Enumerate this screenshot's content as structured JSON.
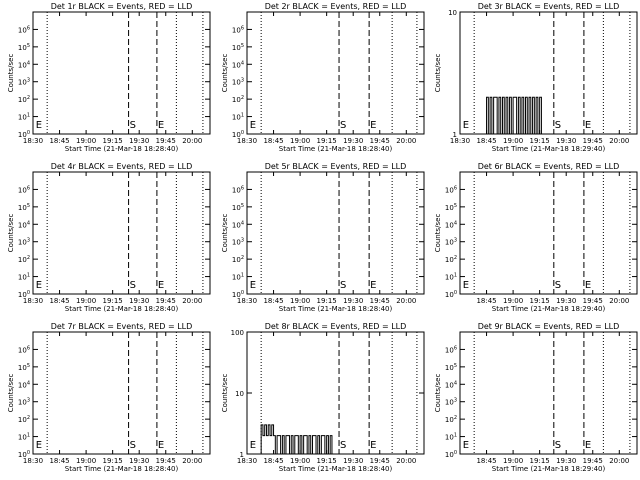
{
  "figure": {
    "background": "#ffffff",
    "event_color": "#000000",
    "lld_color": "#ff0000"
  },
  "chart_data": [
    {
      "type": "line",
      "title": "Det 1r BLACK = Events, RED = LLD",
      "xlabel": "Start Time (21-Mar-18 18:28:40)",
      "ylabel": "Counts/sec",
      "x_tick_labels": [
        "18:30",
        "18:45",
        "19:00",
        "19:15",
        "19:30",
        "19:45",
        "20:00"
      ],
      "x_tick_minutes": [
        0,
        15,
        30,
        45,
        60,
        75,
        90
      ],
      "xlim_minutes": [
        0,
        100
      ],
      "y_scale": "log",
      "ylim": [
        1,
        10000000
      ],
      "y_tick_labels": [
        {
          "b": "10",
          "e": "0"
        },
        {
          "b": "10",
          "e": "1"
        },
        {
          "b": "10",
          "e": "2"
        },
        {
          "b": "10",
          "e": "3"
        },
        {
          "b": "10",
          "e": "4"
        },
        {
          "b": "10",
          "e": "5"
        },
        {
          "b": "10",
          "e": "6"
        }
      ],
      "y_tick_values": [
        1,
        10,
        100,
        1000,
        10000,
        100000,
        1000000
      ],
      "dotted_lines_minutes": [
        8,
        81,
        96
      ],
      "dashed_lines_minutes": [
        54,
        70
      ],
      "markers": [
        {
          "label": "E",
          "minute": 1
        },
        {
          "label": "S",
          "minute": 54
        },
        {
          "label": "E",
          "minute": 70
        }
      ],
      "series": []
    },
    {
      "type": "line",
      "title": "Det 2r BLACK = Events, RED = LLD",
      "xlabel": "Start Time (21-Mar-18 18:28:40)",
      "ylabel": "Counts/sec",
      "x_tick_labels": [
        "18:30",
        "18:45",
        "19:00",
        "19:15",
        "19:30",
        "19:45",
        "20:00"
      ],
      "x_tick_minutes": [
        0,
        15,
        30,
        45,
        60,
        75,
        90
      ],
      "xlim_minutes": [
        0,
        100
      ],
      "y_scale": "log",
      "ylim": [
        1,
        10000000
      ],
      "y_tick_labels": [
        {
          "b": "10",
          "e": "0"
        },
        {
          "b": "10",
          "e": "1"
        },
        {
          "b": "10",
          "e": "2"
        },
        {
          "b": "10",
          "e": "3"
        },
        {
          "b": "10",
          "e": "4"
        },
        {
          "b": "10",
          "e": "5"
        },
        {
          "b": "10",
          "e": "6"
        }
      ],
      "y_tick_values": [
        1,
        10,
        100,
        1000,
        10000,
        100000,
        1000000
      ],
      "dotted_lines_minutes": [
        8,
        82,
        96
      ],
      "dashed_lines_minutes": [
        52,
        69
      ],
      "markers": [
        {
          "label": "E",
          "minute": 1
        },
        {
          "label": "S",
          "minute": 52
        },
        {
          "label": "E",
          "minute": 69
        }
      ],
      "series": []
    },
    {
      "type": "line",
      "title": "Det 3r BLACK = Events, RED = LLD",
      "xlabel": "Start Time (21-Mar-18 18:29:40)",
      "ylabel": "Counts/sec",
      "x_tick_labels": [
        "18:30",
        "18:45",
        "19:00",
        "19:15",
        "19:30",
        "19:45",
        "20:00"
      ],
      "x_tick_minutes": [
        0,
        15,
        30,
        45,
        60,
        75,
        90
      ],
      "xlim_minutes": [
        0,
        100
      ],
      "y_scale": "log",
      "ylim": [
        1,
        10
      ],
      "y_tick_labels": [
        {
          "b": "1",
          "e": ""
        },
        {
          "b": "10",
          "e": ""
        }
      ],
      "y_tick_values": [
        1,
        10
      ],
      "dotted_lines_minutes": [
        8,
        81,
        96
      ],
      "dashed_lines_minutes": [
        53,
        70
      ],
      "markers": [
        {
          "label": "E",
          "minute": 1
        },
        {
          "label": "S",
          "minute": 53
        },
        {
          "label": "E",
          "minute": 70
        }
      ],
      "series": [
        {
          "x": [
            14,
            15,
            16,
            17,
            18,
            19,
            20,
            21,
            22,
            23,
            24,
            25,
            26,
            27,
            28,
            29,
            30,
            31,
            32,
            33,
            34,
            35,
            36,
            37,
            38,
            39,
            40,
            41,
            42,
            43,
            44,
            45,
            46
          ],
          "y": [
            1,
            2,
            1,
            2,
            1,
            2,
            2,
            1,
            2,
            1,
            2,
            1,
            2,
            1,
            2,
            1,
            2,
            2,
            1,
            2,
            1,
            2,
            1,
            2,
            1,
            2,
            1,
            2,
            1,
            2,
            1,
            2,
            1
          ]
        }
      ]
    },
    {
      "type": "line",
      "title": "Det 4r BLACK = Events, RED = LLD",
      "xlabel": "Start Time (21-Mar-18 18:28:40)",
      "ylabel": "Counts/sec",
      "x_tick_labels": [
        "18:30",
        "18:45",
        "19:00",
        "19:15",
        "19:30",
        "19:45",
        "20:00"
      ],
      "x_tick_minutes": [
        0,
        15,
        30,
        45,
        60,
        75,
        90
      ],
      "xlim_minutes": [
        0,
        100
      ],
      "y_scale": "log",
      "ylim": [
        1,
        10000000
      ],
      "y_tick_labels": [
        {
          "b": "10",
          "e": "0"
        },
        {
          "b": "10",
          "e": "1"
        },
        {
          "b": "10",
          "e": "2"
        },
        {
          "b": "10",
          "e": "3"
        },
        {
          "b": "10",
          "e": "4"
        },
        {
          "b": "10",
          "e": "5"
        },
        {
          "b": "10",
          "e": "6"
        }
      ],
      "y_tick_values": [
        1,
        10,
        100,
        1000,
        10000,
        100000,
        1000000
      ],
      "dotted_lines_minutes": [
        8,
        81,
        96
      ],
      "dashed_lines_minutes": [
        54,
        70
      ],
      "markers": [
        {
          "label": "E",
          "minute": 1
        },
        {
          "label": "S",
          "minute": 54
        },
        {
          "label": "E",
          "minute": 70
        }
      ],
      "series": []
    },
    {
      "type": "line",
      "title": "Det 5r BLACK = Events, RED = LLD",
      "xlabel": "Start Time (21-Mar-18 18:28:40)",
      "ylabel": "Counts/sec",
      "x_tick_labels": [
        "18:30",
        "18:45",
        "19:00",
        "19:15",
        "19:30",
        "19:45",
        "20:00"
      ],
      "x_tick_minutes": [
        0,
        15,
        30,
        45,
        60,
        75,
        90
      ],
      "xlim_minutes": [
        0,
        100
      ],
      "y_scale": "log",
      "ylim": [
        1,
        10000000
      ],
      "y_tick_labels": [
        {
          "b": "10",
          "e": "0"
        },
        {
          "b": "10",
          "e": "1"
        },
        {
          "b": "10",
          "e": "2"
        },
        {
          "b": "10",
          "e": "3"
        },
        {
          "b": "10",
          "e": "4"
        },
        {
          "b": "10",
          "e": "5"
        },
        {
          "b": "10",
          "e": "6"
        }
      ],
      "y_tick_values": [
        1,
        10,
        100,
        1000,
        10000,
        100000,
        1000000
      ],
      "dotted_lines_minutes": [
        8,
        82,
        96
      ],
      "dashed_lines_minutes": [
        52,
        69
      ],
      "markers": [
        {
          "label": "E",
          "minute": 1
        },
        {
          "label": "S",
          "minute": 52
        },
        {
          "label": "E",
          "minute": 69
        }
      ],
      "series": []
    },
    {
      "type": "line",
      "title": "Det 6r BLACK = Events, RED = LLD",
      "xlabel": "Start Time (21-Mar-18 18:29:40)",
      "ylabel": "Counts/sec",
      "x_tick_labels": [
        "18:45",
        "19:00",
        "19:15",
        "19:30",
        "19:45",
        "20:00"
      ],
      "x_tick_minutes": [
        15,
        30,
        45,
        60,
        75,
        90
      ],
      "xlim_minutes": [
        0,
        100
      ],
      "y_scale": "log",
      "ylim": [
        1,
        10000000
      ],
      "y_tick_labels": [
        {
          "b": "10",
          "e": "0"
        },
        {
          "b": "10",
          "e": "1"
        },
        {
          "b": "10",
          "e": "2"
        },
        {
          "b": "10",
          "e": "3"
        },
        {
          "b": "10",
          "e": "4"
        },
        {
          "b": "10",
          "e": "5"
        },
        {
          "b": "10",
          "e": "6"
        }
      ],
      "y_tick_values": [
        1,
        10,
        100,
        1000,
        10000,
        100000,
        1000000
      ],
      "dotted_lines_minutes": [
        8,
        81,
        96
      ],
      "dashed_lines_minutes": [
        53,
        70
      ],
      "markers": [
        {
          "label": "E",
          "minute": 1
        },
        {
          "label": "S",
          "minute": 53
        },
        {
          "label": "E",
          "minute": 70
        }
      ],
      "series": []
    },
    {
      "type": "line",
      "title": "Det 7r BLACK = Events, RED = LLD",
      "xlabel": "Start Time (21-Mar-18 18:28:40)",
      "ylabel": "Counts/sec",
      "x_tick_labels": [
        "18:30",
        "18:45",
        "19:00",
        "19:15",
        "19:30",
        "19:45",
        "20:00"
      ],
      "x_tick_minutes": [
        0,
        15,
        30,
        45,
        60,
        75,
        90
      ],
      "xlim_minutes": [
        0,
        100
      ],
      "y_scale": "log",
      "ylim": [
        1,
        10000000
      ],
      "y_tick_labels": [
        {
          "b": "10",
          "e": "0"
        },
        {
          "b": "10",
          "e": "1"
        },
        {
          "b": "10",
          "e": "2"
        },
        {
          "b": "10",
          "e": "3"
        },
        {
          "b": "10",
          "e": "4"
        },
        {
          "b": "10",
          "e": "5"
        },
        {
          "b": "10",
          "e": "6"
        }
      ],
      "y_tick_values": [
        1,
        10,
        100,
        1000,
        10000,
        100000,
        1000000
      ],
      "dotted_lines_minutes": [
        8,
        81,
        96
      ],
      "dashed_lines_minutes": [
        54,
        70
      ],
      "markers": [
        {
          "label": "E",
          "minute": 1
        },
        {
          "label": "S",
          "minute": 54
        },
        {
          "label": "E",
          "minute": 70
        }
      ],
      "series": []
    },
    {
      "type": "line",
      "title": "Det 8r BLACK = Events, RED = LLD",
      "xlabel": "Start Time (21-Mar-18 18:28:40)",
      "ylabel": "Counts/sec",
      "x_tick_labels": [
        "18:30",
        "18:45",
        "19:00",
        "19:15",
        "19:30",
        "19:45",
        "20:00"
      ],
      "x_tick_minutes": [
        0,
        15,
        30,
        45,
        60,
        75,
        90
      ],
      "xlim_minutes": [
        0,
        100
      ],
      "y_scale": "log",
      "ylim": [
        1,
        100
      ],
      "y_tick_labels": [
        {
          "b": "1",
          "e": ""
        },
        {
          "b": "10",
          "e": ""
        },
        {
          "b": "100",
          "e": ""
        }
      ],
      "y_tick_values": [
        1,
        10,
        100
      ],
      "dotted_lines_minutes": [
        8,
        82,
        96
      ],
      "dashed_lines_minutes": [
        52,
        69
      ],
      "markers": [
        {
          "label": "E",
          "minute": 1
        },
        {
          "label": "S",
          "minute": 52
        },
        {
          "label": "E",
          "minute": 69
        }
      ],
      "series": [
        {
          "x": [
            7,
            8,
            9,
            10,
            11,
            12,
            13,
            14,
            15,
            16,
            17,
            18,
            19,
            20,
            21,
            22,
            23,
            24,
            25,
            26,
            27,
            28,
            29,
            30,
            31,
            32,
            33,
            34,
            35,
            36,
            37,
            38,
            39,
            40,
            41,
            42,
            43,
            44,
            45,
            46,
            47,
            48
          ],
          "y": [
            1,
            3,
            2,
            3,
            2,
            3,
            2,
            3,
            2,
            1,
            2,
            2,
            1,
            2,
            1,
            2,
            2,
            1,
            2,
            1,
            2,
            2,
            1,
            2,
            1,
            2,
            2,
            1,
            2,
            1,
            2,
            2,
            1,
            2,
            1,
            2,
            2,
            1,
            2,
            1,
            2,
            1
          ]
        }
      ]
    },
    {
      "type": "line",
      "title": "Det 9r BLACK = Events, RED = LLD",
      "xlabel": "Start Time (21-Mar-18 18:29:40)",
      "ylabel": "Counts/sec",
      "x_tick_labels": [
        "18:45",
        "19:00",
        "19:15",
        "19:30",
        "19:45",
        "20:00"
      ],
      "x_tick_minutes": [
        15,
        30,
        45,
        60,
        75,
        90
      ],
      "xlim_minutes": [
        0,
        100
      ],
      "y_scale": "log",
      "ylim": [
        1,
        10000000
      ],
      "y_tick_labels": [
        {
          "b": "10",
          "e": "0"
        },
        {
          "b": "10",
          "e": "1"
        },
        {
          "b": "10",
          "e": "2"
        },
        {
          "b": "10",
          "e": "3"
        },
        {
          "b": "10",
          "e": "4"
        },
        {
          "b": "10",
          "e": "5"
        },
        {
          "b": "10",
          "e": "6"
        }
      ],
      "y_tick_values": [
        1,
        10,
        100,
        1000,
        10000,
        100000,
        1000000
      ],
      "dotted_lines_minutes": [
        8,
        81,
        96
      ],
      "dashed_lines_minutes": [
        53,
        70
      ],
      "markers": [
        {
          "label": "E",
          "minute": 1
        },
        {
          "label": "S",
          "minute": 53
        },
        {
          "label": "E",
          "minute": 70
        }
      ],
      "series": []
    }
  ]
}
